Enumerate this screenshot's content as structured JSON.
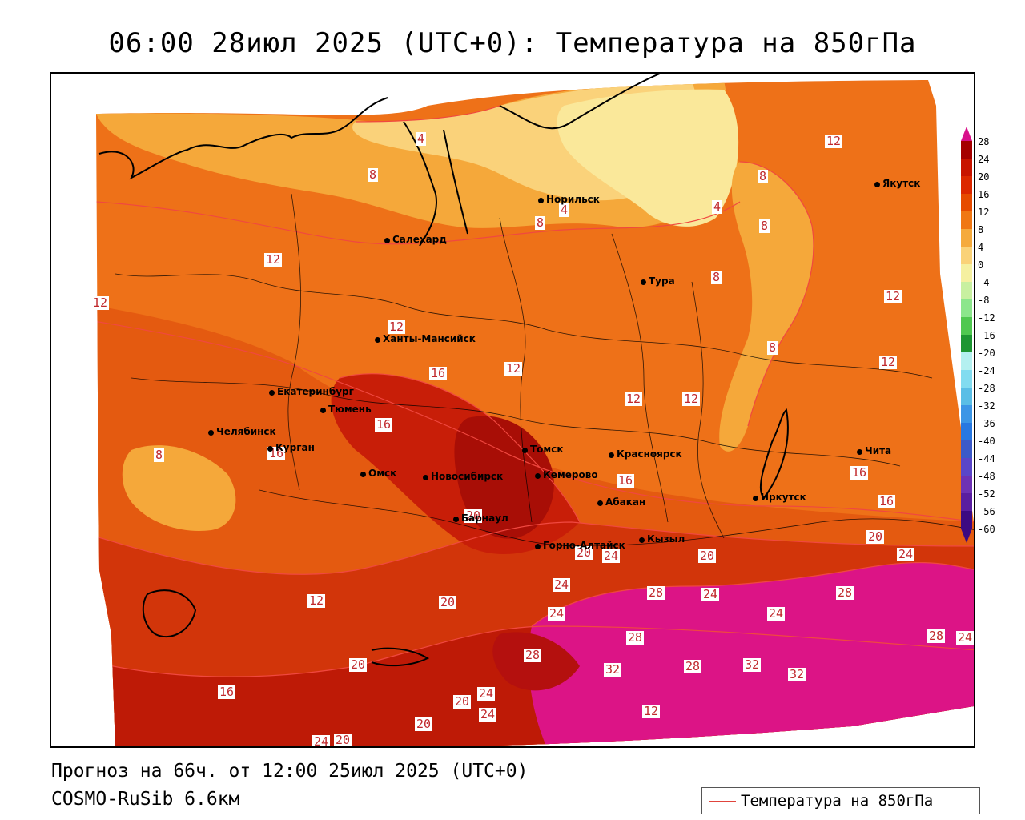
{
  "title": "06:00 28июл 2025 (UTC+0): Температура на 850гПа",
  "footer": {
    "forecast": "Прогноз на 66ч. от 12:00 25июл 2025 (UTC+0)",
    "model": "COSMO-RuSib 6.6км"
  },
  "legend": {
    "label": "Температура на 850гПа",
    "color": "#e0443c"
  },
  "colorbar": {
    "ticks": [
      "28",
      "24",
      "20",
      "16",
      "12",
      "8",
      "4",
      "0",
      "-4",
      "-8",
      "-12",
      "-16",
      "-20",
      "-24",
      "-28",
      "-32",
      "-36",
      "-40",
      "-44",
      "-48",
      "-52",
      "-56",
      "-60"
    ],
    "colors": [
      "#d8108a",
      "#a50000",
      "#c81400",
      "#dc2800",
      "#e64b00",
      "#f07814",
      "#f5aa3c",
      "#fad278",
      "#f5f0a0",
      "#c8f0a0",
      "#8ce68c",
      "#50c850",
      "#1e9632",
      "#b4f0f0",
      "#82dcf0",
      "#5abee6",
      "#3c96e6",
      "#2878e1",
      "#3c5ac8",
      "#5a46c8",
      "#6e32b4",
      "#5a1ea0",
      "#3c0a82"
    ]
  },
  "cities": [
    {
      "name": "Норильск"
    },
    {
      "name": "Якутск"
    },
    {
      "name": "Салехард"
    },
    {
      "name": "Тура"
    },
    {
      "name": "Ханты-Мансийск"
    },
    {
      "name": "Екатеринбург"
    },
    {
      "name": "Тюмень"
    },
    {
      "name": "Челябинск"
    },
    {
      "name": "Курган"
    },
    {
      "name": "Омск"
    },
    {
      "name": "Новосибирск"
    },
    {
      "name": "Томск"
    },
    {
      "name": "Кемерово"
    },
    {
      "name": "Красноярск"
    },
    {
      "name": "Абакан"
    },
    {
      "name": "Барнаул"
    },
    {
      "name": "Горно-Алтайск"
    },
    {
      "name": "Кызыл"
    },
    {
      "name": "Иркутск"
    },
    {
      "name": "Чита"
    }
  ],
  "contour_labels": [
    "4",
    "8",
    "12",
    "4",
    "8",
    "12",
    "4",
    "8",
    "8",
    "12",
    "8",
    "12",
    "12",
    "8",
    "12",
    "16",
    "12",
    "12",
    "12",
    "16",
    "8",
    "16",
    "20",
    "12",
    "16",
    "16",
    "16",
    "20",
    "24",
    "24",
    "20",
    "24",
    "24",
    "20",
    "28",
    "24",
    "24",
    "28",
    "28",
    "24",
    "28",
    "28",
    "32",
    "32",
    "28",
    "32",
    "20",
    "24",
    "20",
    "24",
    "20",
    "16",
    "20",
    "12",
    "24",
    "20"
  ]
}
